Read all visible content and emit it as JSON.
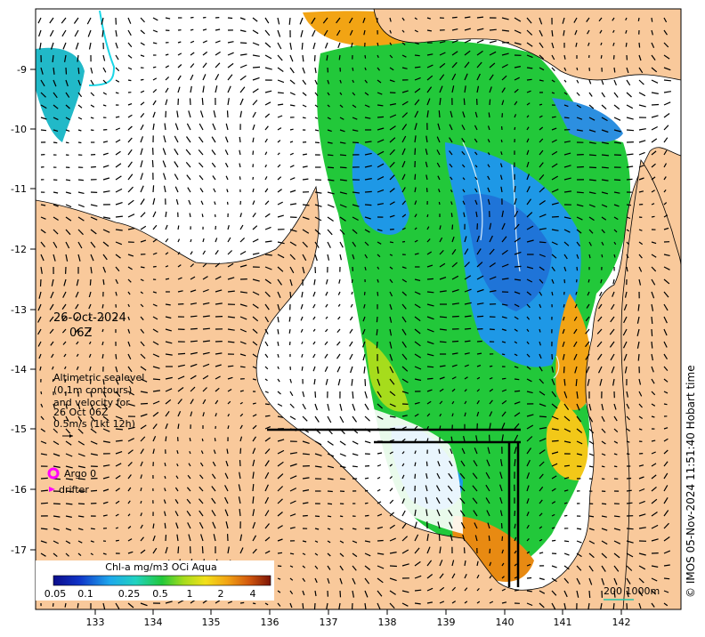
{
  "map": {
    "date": "26-Oct-2024",
    "time": "06Z",
    "sealevel_note": [
      "Altimetric sealevel",
      "(0.1m contours)",
      "and velocity for",
      "26 Oct 06Z",
      "0.5m/s (1kt 12h)"
    ],
    "argo_label": "Argo 0",
    "drifter_label": "drifter",
    "colorbar_title": "Chl-a mg/m3 OCi Aqua",
    "colorbar_ticks": [
      "0.05",
      "0.1",
      "0.25",
      "0.5",
      "1",
      "2",
      "4"
    ],
    "scale_label": "200  1000m",
    "credit": "© IMOS 05-Nov-2024 11:51:40 Hobart time",
    "lat_ticks": [
      "-9",
      "-10",
      "-11",
      "-12",
      "-13",
      "-14",
      "-15",
      "-16",
      "-17"
    ],
    "lon_ticks": [
      "133",
      "134",
      "135",
      "136",
      "137",
      "138",
      "139",
      "140",
      "141",
      "142"
    ],
    "colors": {
      "land": "#f9c99b",
      "ocean_no_data": "#ffffff",
      "argo_marker": "#ff00ff",
      "drifter_marker": "#ff00ff",
      "scale_line": "#22c5a8",
      "boundary": "#000000"
    }
  }
}
